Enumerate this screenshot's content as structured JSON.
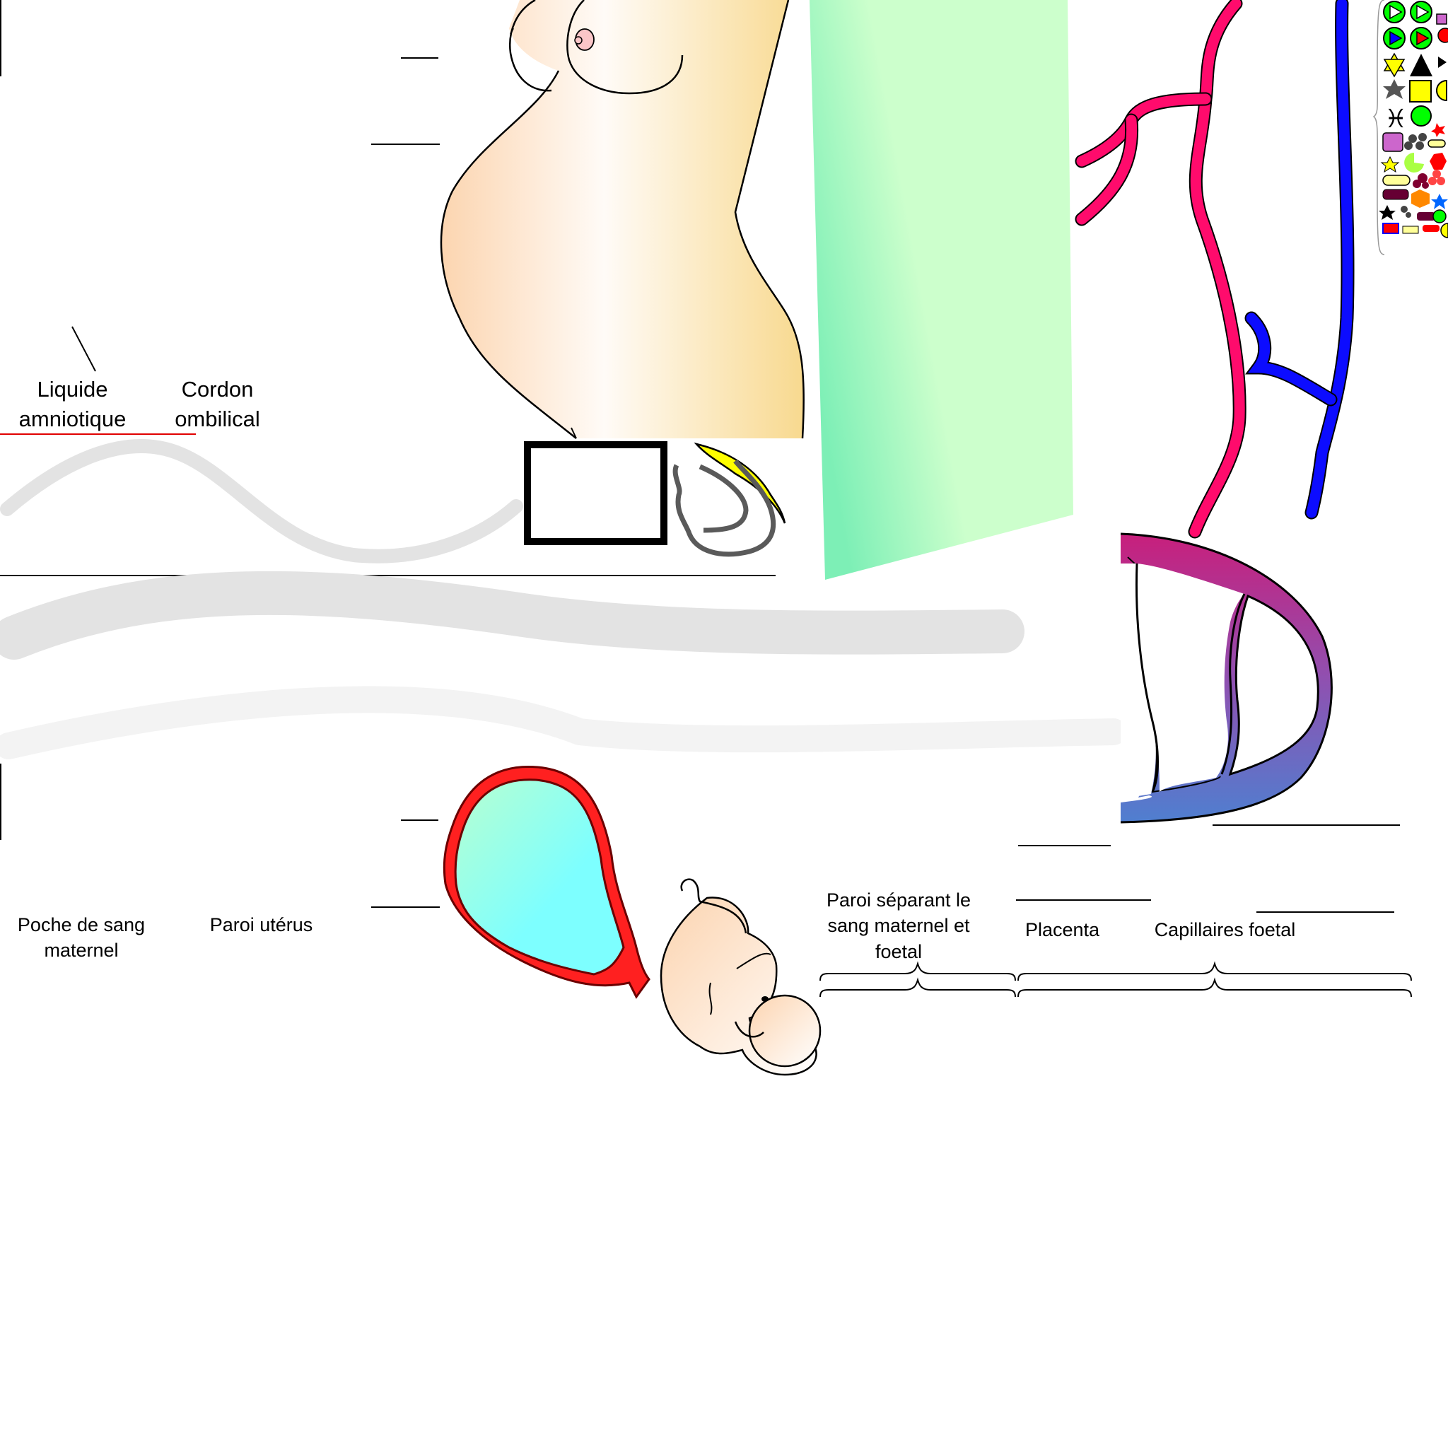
{
  "labels": {
    "liquide": "Liquide amniotique",
    "cordon": "Cordon ombilical",
    "poche": "Poche de sang maternel",
    "paroi_uterus": "Paroi utérus",
    "paroi_separant": "Paroi séparant le sang maternel et foetal",
    "placenta": "Placenta",
    "capillaires": "Capillaires foetal"
  },
  "colors": {
    "skin_light": "#fffaf5",
    "skin_dark": "#f8d98f",
    "skin_peach": "#fcd7b6",
    "green_panel": "#ccffcc",
    "green_strong": "#7defb6",
    "artery": "#ff0b6c",
    "vein": "#0c0cff",
    "uterus_wall": "#ff1f1f",
    "sac_top": "#b8ffd0",
    "sac_bottom": "#7dffff",
    "placenta_top": "#c3237f",
    "placenta_bottom": "#4f7fd0",
    "cord_gray": "#e3e3e3",
    "cord_light": "#f3f3f3",
    "yellow": "#ffff00"
  },
  "palette": {
    "icons": [
      "play-green-icon",
      "play-green-icon",
      "small-square-icon",
      "play-blue-icon",
      "play-red-icon",
      "red-circle-icon",
      "star-of-david-icon",
      "triangle-icon",
      "triangle-small-icon",
      "star-gray-icon",
      "square-yellow-icon",
      "half-circle-icon",
      "pisces-icon",
      "circle-green-icon",
      "crescent-icon",
      "square-purple-icon",
      "dots-icon",
      "rounded-rect-icon",
      "star-small-icon",
      "pacman-icon",
      "heptagon-red-icon",
      "pill-icon",
      "cluster-icon",
      "rounded-rect-dark-icon",
      "hexagon-orange-icon",
      "star-blue-icon",
      "star-black-icon",
      "circle-green-small-icon",
      "bar-red-icon",
      "rect-yellow-icon"
    ]
  }
}
